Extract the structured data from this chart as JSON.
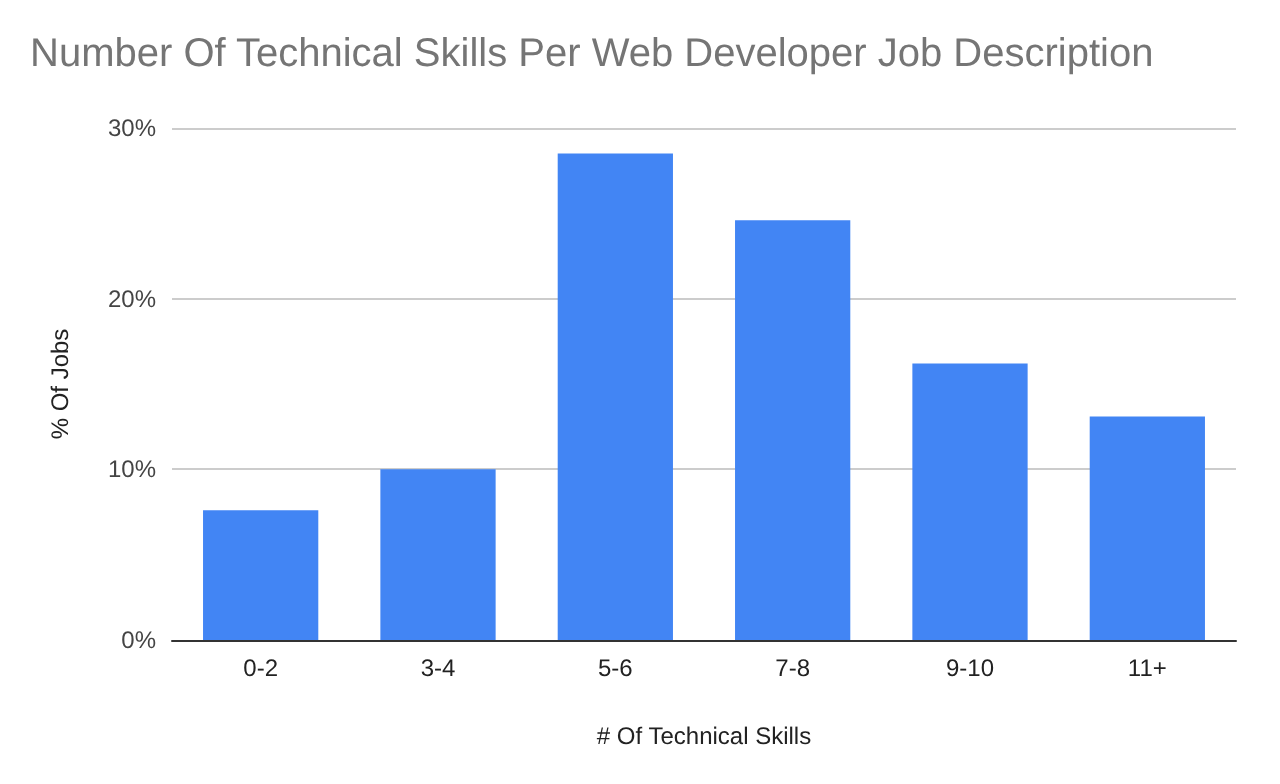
{
  "chart_data": {
    "type": "bar",
    "title": "Number Of Technical Skills Per Web Developer Job Description",
    "xlabel": "# Of Technical Skills",
    "ylabel": "% Of Jobs",
    "categories": [
      "0-2",
      "3-4",
      "5-6",
      "7-8",
      "9-10",
      "11+"
    ],
    "values": [
      7.6,
      10.0,
      28.5,
      24.6,
      16.2,
      13.1
    ],
    "color": "#4285f4",
    "ylim": [
      0,
      30
    ],
    "yticks": [
      {
        "value": 0,
        "label": "0%"
      },
      {
        "value": 10,
        "label": "10%"
      },
      {
        "value": 20,
        "label": "20%"
      },
      {
        "value": 30,
        "label": "30%"
      }
    ],
    "grid": "y"
  }
}
